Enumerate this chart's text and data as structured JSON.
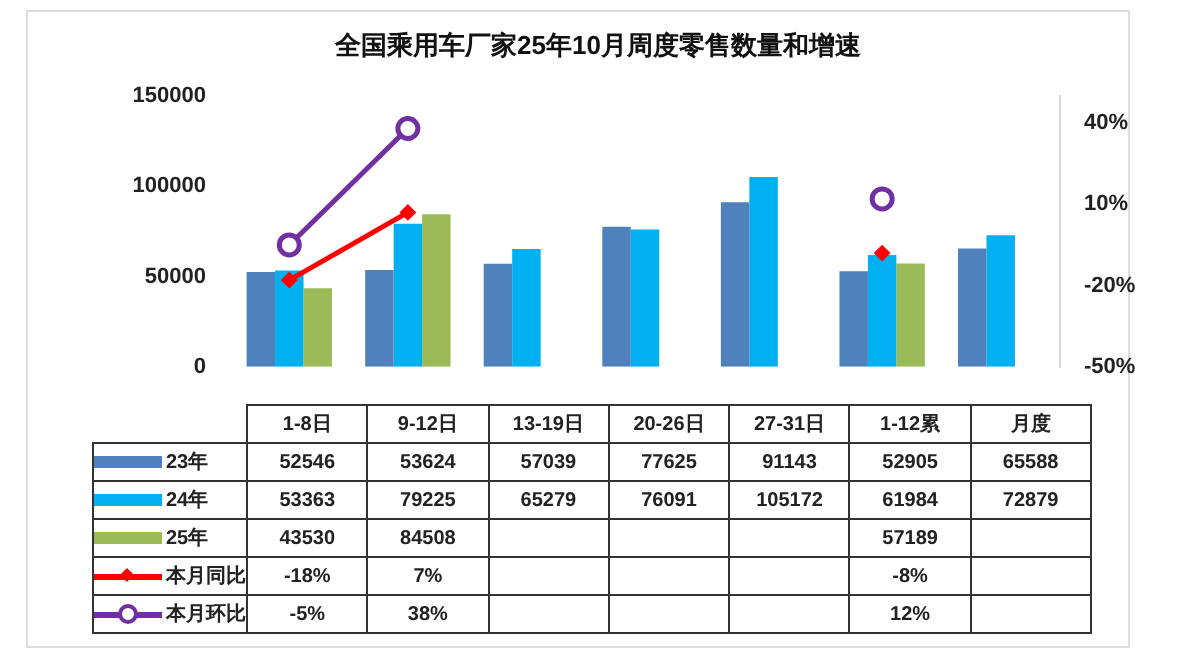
{
  "chart_data": {
    "type": "bar",
    "title": "全国乘用车厂家25年10月周度零售数量和增速",
    "categories": [
      "1-8日",
      "9-12日",
      "13-19日",
      "20-26日",
      "27-31日",
      "1-12累",
      "月度"
    ],
    "series": [
      {
        "name": "23年",
        "color": "#4f81bd",
        "values": [
          52546,
          53624,
          57039,
          77625,
          91143,
          52905,
          65588
        ],
        "value_labels": [
          "52546",
          "53624",
          "57039",
          "77625",
          "91143",
          "52905",
          "65588"
        ]
      },
      {
        "name": "24年",
        "color": "#00b0f0",
        "values": [
          53363,
          79225,
          65279,
          76091,
          105172,
          61984,
          72879
        ],
        "value_labels": [
          "53363",
          "79225",
          "65279",
          "76091",
          "105172",
          "61984",
          "72879"
        ]
      },
      {
        "name": "25年",
        "color": "#9bbb59",
        "values": [
          43530,
          84508,
          null,
          null,
          null,
          57189,
          null
        ],
        "value_labels": [
          "43530",
          "84508",
          null,
          null,
          null,
          "57189",
          null
        ]
      },
      {
        "name": "本月同比",
        "type": "line",
        "axis": "y2",
        "marker": "diamond",
        "color": "#ff0000",
        "values": [
          -18,
          7,
          null,
          null,
          null,
          -8,
          null
        ],
        "value_labels": [
          "-18%",
          "7%",
          null,
          null,
          null,
          "-8%",
          null
        ]
      },
      {
        "name": "本月环比",
        "type": "line",
        "axis": "y2",
        "marker": "circle",
        "color": "#7030a0",
        "values": [
          -5,
          38,
          null,
          null,
          null,
          12,
          null
        ],
        "value_labels": [
          "-5%",
          "38%",
          null,
          null,
          null,
          "12%",
          null
        ]
      }
    ],
    "ylim": [
      0,
      150000
    ],
    "yticks": [
      0,
      50000,
      100000,
      150000
    ],
    "y2lim": [
      -50,
      50
    ],
    "y2ticks": [
      {
        "value": -50,
        "label": "-50%"
      },
      {
        "value": -20,
        "label": "-20%"
      },
      {
        "value": 10,
        "label": "10%"
      },
      {
        "value": 40,
        "label": "40%"
      }
    ],
    "grid": false,
    "legend": "bottom"
  }
}
